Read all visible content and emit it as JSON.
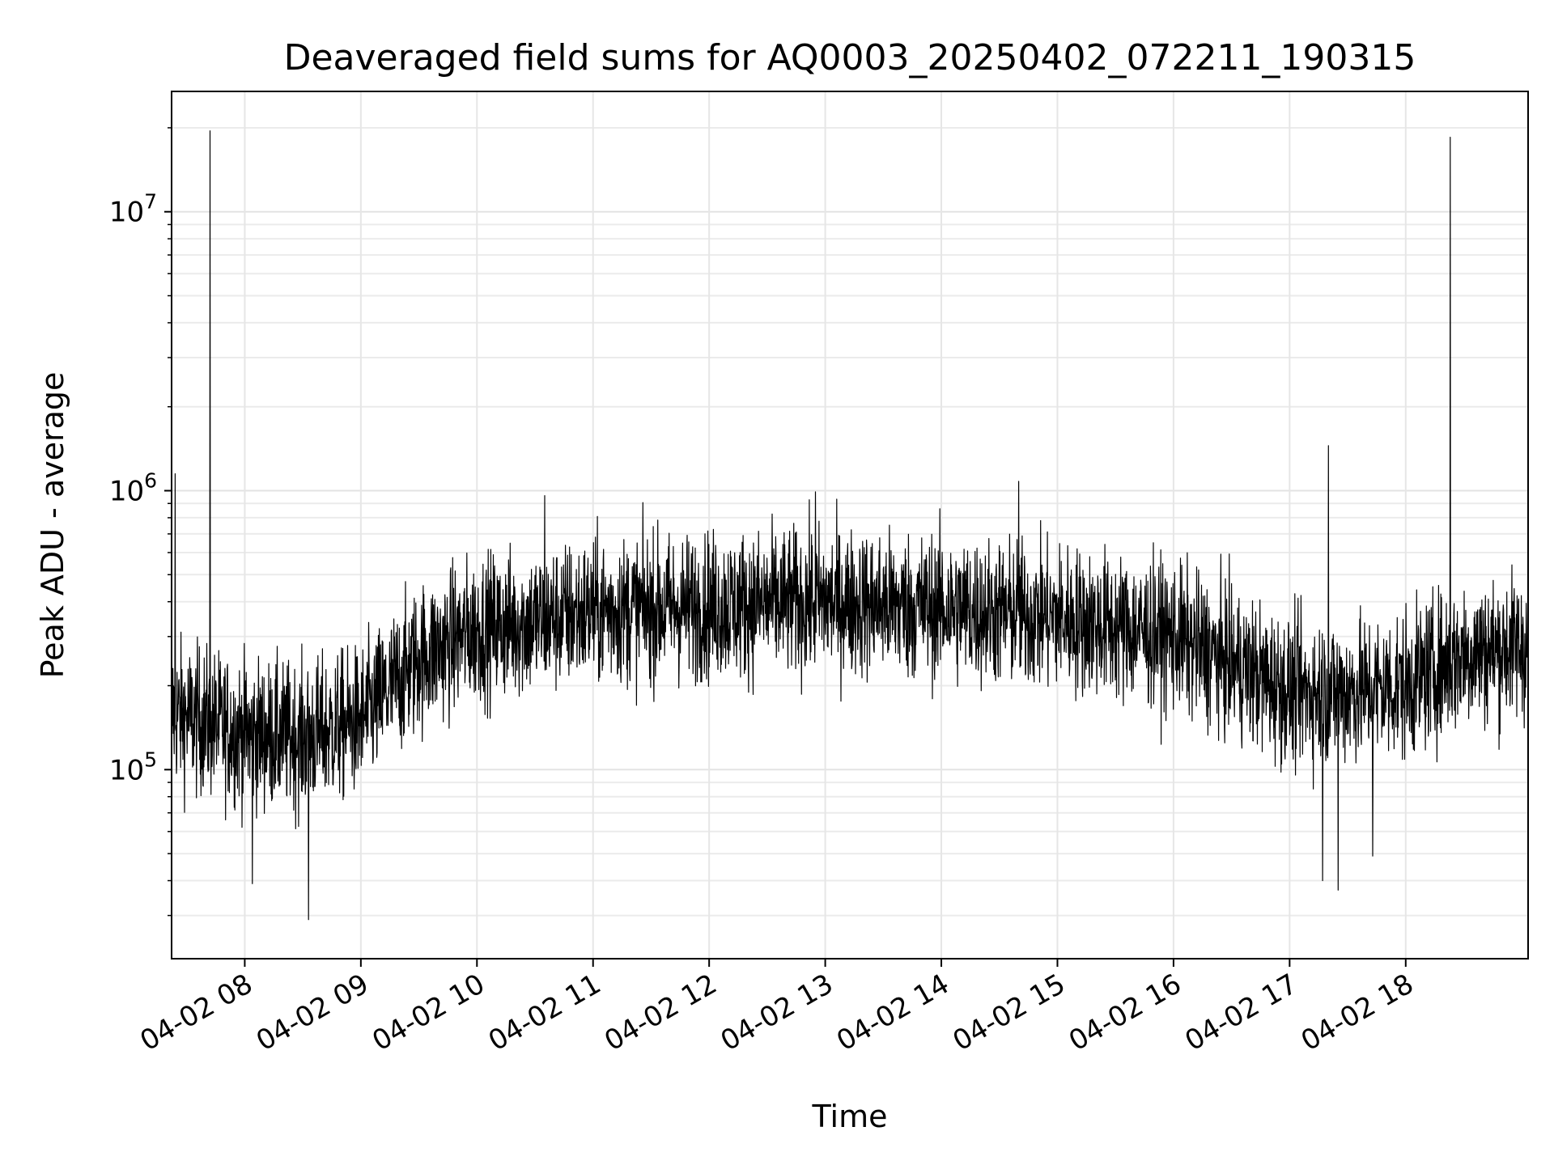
{
  "chart_data": {
    "type": "line",
    "title": "Deaveraged field sums for AQ0003_20250402_072211_190315",
    "xlabel": "Time",
    "ylabel": "Peak ADU - average",
    "y_scale": "log",
    "ylim": [
      21000,
      27000000
    ],
    "xlim": [
      "2025-04-02 07:22:11",
      "2025-04-02 19:03:15"
    ],
    "grid": true,
    "line_color": "#000000",
    "x_ticks": [
      {
        "t": "2025-04-02 08:00",
        "label": "04-02 08"
      },
      {
        "t": "2025-04-02 09:00",
        "label": "04-02 09"
      },
      {
        "t": "2025-04-02 10:00",
        "label": "04-02 10"
      },
      {
        "t": "2025-04-02 11:00",
        "label": "04-02 11"
      },
      {
        "t": "2025-04-02 12:00",
        "label": "04-02 12"
      },
      {
        "t": "2025-04-02 13:00",
        "label": "04-02 13"
      },
      {
        "t": "2025-04-02 14:00",
        "label": "04-02 14"
      },
      {
        "t": "2025-04-02 15:00",
        "label": "04-02 15"
      },
      {
        "t": "2025-04-02 16:00",
        "label": "04-02 16"
      },
      {
        "t": "2025-04-02 17:00",
        "label": "04-02 17"
      },
      {
        "t": "2025-04-02 18:00",
        "label": "04-02 18"
      }
    ],
    "y_ticks": [
      {
        "v": 100000,
        "base": "10",
        "exp": "5"
      },
      {
        "v": 1000000,
        "base": "10",
        "exp": "6"
      },
      {
        "v": 10000000,
        "base": "10",
        "exp": "7"
      }
    ],
    "series": [
      {
        "typical_profile": [
          {
            "t": "2025-04-02 07:22",
            "y": 160000
          },
          {
            "t": "2025-04-02 08:00",
            "y": 135000
          },
          {
            "t": "2025-04-02 08:30",
            "y": 130000
          },
          {
            "t": "2025-04-02 09:00",
            "y": 150000
          },
          {
            "t": "2025-04-02 09:30",
            "y": 250000
          },
          {
            "t": "2025-04-02 10:00",
            "y": 320000
          },
          {
            "t": "2025-04-02 10:30",
            "y": 340000
          },
          {
            "t": "2025-04-02 11:00",
            "y": 370000
          },
          {
            "t": "2025-04-02 12:00",
            "y": 385000
          },
          {
            "t": "2025-04-02 13:00",
            "y": 400000
          },
          {
            "t": "2025-04-02 14:00",
            "y": 380000
          },
          {
            "t": "2025-04-02 15:00",
            "y": 350000
          },
          {
            "t": "2025-04-02 16:00",
            "y": 300000
          },
          {
            "t": "2025-04-02 16:30",
            "y": 240000
          },
          {
            "t": "2025-04-02 17:00",
            "y": 190000
          },
          {
            "t": "2025-04-02 17:30",
            "y": 190000
          },
          {
            "t": "2025-04-02 18:00",
            "y": 200000
          },
          {
            "t": "2025-04-02 18:30",
            "y": 260000
          },
          {
            "t": "2025-04-02 19:03",
            "y": 280000
          }
        ],
        "peaks": [
          {
            "t": "2025-04-02 07:24",
            "y": 1150000
          },
          {
            "t": "2025-04-02 07:42",
            "y": 19500000
          },
          {
            "t": "2025-04-02 17:20",
            "y": 1450000
          },
          {
            "t": "2025-04-02 18:23",
            "y": 18500000
          },
          {
            "t": "2025-04-02 14:40",
            "y": 1080000
          },
          {
            "t": "2025-04-02 10:35",
            "y": 960000
          },
          {
            "t": "2025-04-02 12:55",
            "y": 990000
          }
        ],
        "troughs": [
          {
            "t": "2025-04-02 08:33",
            "y": 29000
          },
          {
            "t": "2025-04-02 08:04",
            "y": 39000
          },
          {
            "t": "2025-04-02 17:25",
            "y": 37000
          },
          {
            "t": "2025-04-02 17:17",
            "y": 40000
          },
          {
            "t": "2025-04-02 17:43",
            "y": 49000
          }
        ]
      }
    ]
  }
}
